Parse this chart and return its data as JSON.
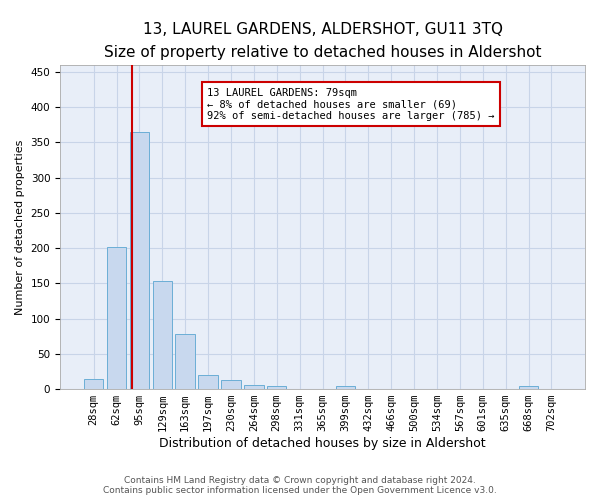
{
  "title": "13, LAUREL GARDENS, ALDERSHOT, GU11 3TQ",
  "subtitle": "Size of property relative to detached houses in Aldershot",
  "xlabel": "Distribution of detached houses by size in Aldershot",
  "ylabel": "Number of detached properties",
  "bar_labels": [
    "28sqm",
    "62sqm",
    "95sqm",
    "129sqm",
    "163sqm",
    "197sqm",
    "230sqm",
    "264sqm",
    "298sqm",
    "331sqm",
    "365sqm",
    "399sqm",
    "432sqm",
    "466sqm",
    "500sqm",
    "534sqm",
    "567sqm",
    "601sqm",
    "635sqm",
    "668sqm",
    "702sqm"
  ],
  "bar_values": [
    15,
    202,
    365,
    153,
    78,
    20,
    13,
    6,
    5,
    0,
    0,
    4,
    0,
    0,
    0,
    0,
    0,
    0,
    0,
    4,
    0
  ],
  "bar_color": "#c8d8ee",
  "bar_edge_color": "#6baed6",
  "property_line_x": 1.68,
  "annotation_line1": "13 LAUREL GARDENS: 79sqm",
  "annotation_line2": "← 8% of detached houses are smaller (69)",
  "annotation_line3": "92% of semi-detached houses are larger (785) →",
  "annotation_box_color": "#ffffff",
  "annotation_box_edge_color": "#cc0000",
  "ylim": [
    0,
    460
  ],
  "yticks": [
    0,
    50,
    100,
    150,
    200,
    250,
    300,
    350,
    400,
    450
  ],
  "footer_line1": "Contains HM Land Registry data © Crown copyright and database right 2024.",
  "footer_line2": "Contains public sector information licensed under the Open Government Licence v3.0.",
  "background_color": "#ffffff",
  "plot_bg_color": "#e8eef8",
  "grid_color": "#c8d4e8",
  "title_fontsize": 11,
  "subtitle_fontsize": 9.5,
  "ylabel_fontsize": 8,
  "xlabel_fontsize": 9,
  "tick_fontsize": 7.5,
  "annotation_fontsize": 7.5,
  "footer_fontsize": 6.5
}
